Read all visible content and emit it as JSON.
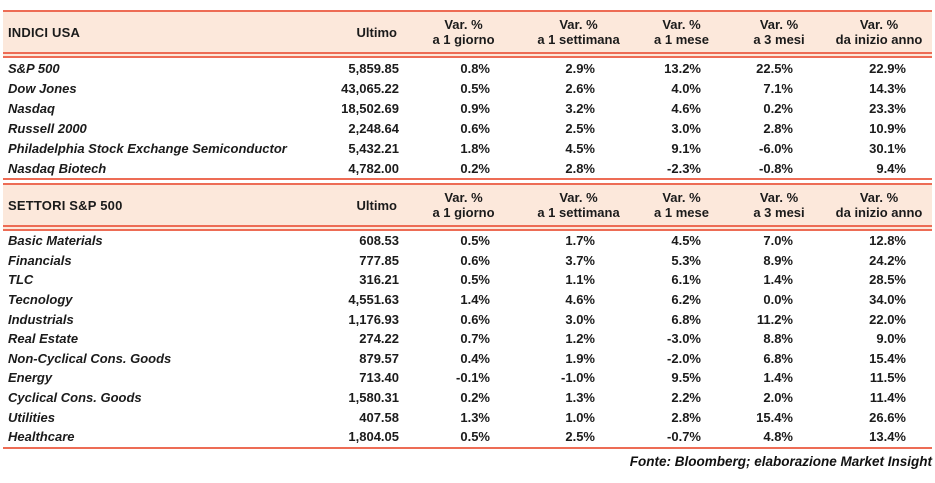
{
  "colors": {
    "accent_coral": "#ED6C55",
    "header_fill": "#FCE8DB",
    "text": "#1B1B1B"
  },
  "footer": {
    "source": "Fonte: Bloomberg; elaborazione Market Insight"
  },
  "chart_data": [
    {
      "type": "table",
      "title": "INDICI USA",
      "ultimo_label": "Ultimo",
      "var_label": "Var. %",
      "periods": [
        "a 1 giorno",
        "a 1 settimana",
        "a 1 mese",
        "a 3 mesi",
        "da inizio anno"
      ],
      "rows": [
        {
          "name": "S&P 500",
          "ultimo": "5,859.85",
          "vars": [
            "0.8%",
            "2.9%",
            "13.2%",
            "22.5%",
            "22.9%"
          ]
        },
        {
          "name": "Dow Jones",
          "ultimo": "43,065.22",
          "vars": [
            "0.5%",
            "2.6%",
            "4.0%",
            "7.1%",
            "14.3%"
          ]
        },
        {
          "name": "Nasdaq",
          "ultimo": "18,502.69",
          "vars": [
            "0.9%",
            "3.2%",
            "4.6%",
            "0.2%",
            "23.3%"
          ]
        },
        {
          "name": "Russell 2000",
          "ultimo": "2,248.64",
          "vars": [
            "0.6%",
            "2.5%",
            "3.0%",
            "2.8%",
            "10.9%"
          ]
        },
        {
          "name": "Philadelphia Stock Exchange Semiconductor",
          "ultimo": "5,432.21",
          "vars": [
            "1.8%",
            "4.5%",
            "9.1%",
            "-6.0%",
            "30.1%"
          ]
        },
        {
          "name": "Nasdaq Biotech",
          "ultimo": "4,782.00",
          "vars": [
            "0.2%",
            "2.8%",
            "-2.3%",
            "-0.8%",
            "9.4%"
          ]
        }
      ]
    },
    {
      "type": "table",
      "title": "SETTORI S&P 500",
      "ultimo_label": "Ultimo",
      "var_label": "Var. %",
      "periods": [
        "a 1 giorno",
        "a 1 settimana",
        "a 1 mese",
        "a 3 mesi",
        "da inizio anno"
      ],
      "rows": [
        {
          "name": "Basic Materials",
          "ultimo": "608.53",
          "vars": [
            "0.5%",
            "1.7%",
            "4.5%",
            "7.0%",
            "12.8%"
          ]
        },
        {
          "name": "Financials",
          "ultimo": "777.85",
          "vars": [
            "0.6%",
            "3.7%",
            "5.3%",
            "8.9%",
            "24.2%"
          ]
        },
        {
          "name": "TLC",
          "ultimo": "316.21",
          "vars": [
            "0.5%",
            "1.1%",
            "6.1%",
            "1.4%",
            "28.5%"
          ]
        },
        {
          "name": "Tecnology",
          "ultimo": "4,551.63",
          "vars": [
            "1.4%",
            "4.6%",
            "6.2%",
            "0.0%",
            "34.0%"
          ]
        },
        {
          "name": "Industrials",
          "ultimo": "1,176.93",
          "vars": [
            "0.6%",
            "3.0%",
            "6.8%",
            "11.2%",
            "22.0%"
          ]
        },
        {
          "name": "Real Estate",
          "ultimo": "274.22",
          "vars": [
            "0.7%",
            "1.2%",
            "-3.0%",
            "8.8%",
            "9.0%"
          ]
        },
        {
          "name": "Non-Cyclical Cons. Goods",
          "ultimo": "879.57",
          "vars": [
            "0.4%",
            "1.9%",
            "-2.0%",
            "6.8%",
            "15.4%"
          ]
        },
        {
          "name": "Energy",
          "ultimo": "713.40",
          "vars": [
            "-0.1%",
            "-1.0%",
            "9.5%",
            "1.4%",
            "11.5%"
          ]
        },
        {
          "name": "Cyclical Cons. Goods",
          "ultimo": "1,580.31",
          "vars": [
            "0.2%",
            "1.3%",
            "2.2%",
            "2.0%",
            "11.4%"
          ]
        },
        {
          "name": "Utilities",
          "ultimo": "407.58",
          "vars": [
            "1.3%",
            "1.0%",
            "2.8%",
            "15.4%",
            "26.6%"
          ]
        },
        {
          "name": "Healthcare",
          "ultimo": "1,804.05",
          "vars": [
            "0.5%",
            "2.5%",
            "-0.7%",
            "4.8%",
            "13.4%"
          ]
        }
      ]
    }
  ]
}
